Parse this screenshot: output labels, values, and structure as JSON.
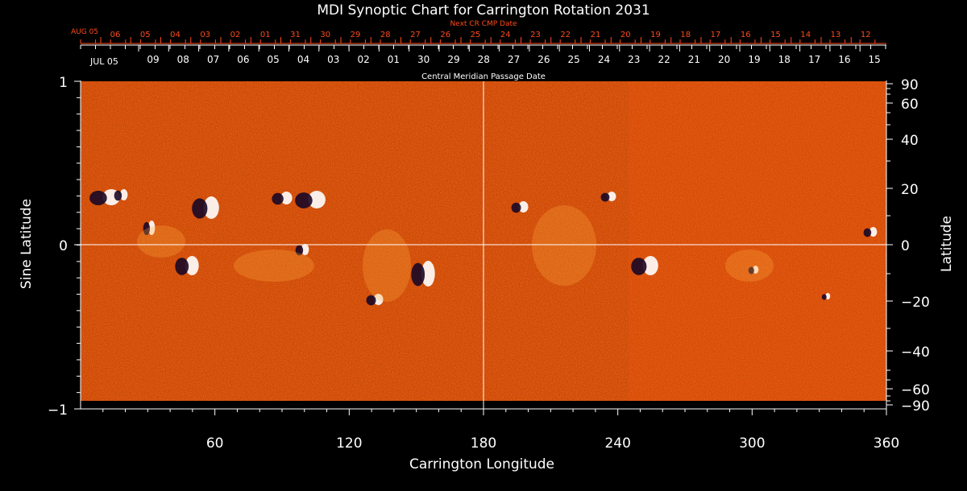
{
  "title": "MDI Synoptic Chart for Carrington Rotation 2031",
  "next_cr_label": "Next CR CMP Date",
  "next_cr_start": "AUG 05",
  "next_cr_dates": [
    "06",
    "05",
    "04",
    "03",
    "02",
    "01",
    "31",
    "30",
    "29",
    "28",
    "27",
    "26",
    "25",
    "24",
    "23",
    "22",
    "21",
    "20",
    "19",
    "18",
    "17",
    "16",
    "15",
    "14",
    "13",
    "12"
  ],
  "cmp_start": "JUL 05",
  "cmp_dates": [
    "09",
    "08",
    "07",
    "06",
    "05",
    "04",
    "03",
    "02",
    "01",
    "30",
    "29",
    "28",
    "27",
    "26",
    "25",
    "24",
    "23",
    "22",
    "21",
    "20",
    "19",
    "18",
    "17",
    "16",
    "15"
  ],
  "cmp_label": "Central Meridian Passage Date",
  "xlabel": "Carrington Longitude",
  "ylabel_left": "Sine Latitude",
  "ylabel_right": "Latitude",
  "x_ticks": [
    "60",
    "120",
    "180",
    "240",
    "300",
    "360"
  ],
  "left_ticks": [
    "1",
    "0",
    "−1"
  ],
  "right_ticks": [
    "90",
    "60",
    "40",
    "20",
    "0",
    "−20",
    "−40",
    "−60",
    "−90"
  ],
  "colors": {
    "background": "#cc3300",
    "next_cr": "#ff4a1a",
    "axis": "#ffffff"
  },
  "chart_data": {
    "type": "heatmap",
    "title": "MDI Synoptic Chart for Carrington Rotation 2031",
    "xlabel": "Carrington Longitude",
    "ylabel": "Sine Latitude",
    "xlim": [
      0,
      360
    ],
    "ylim": [
      -1,
      1
    ]
  }
}
